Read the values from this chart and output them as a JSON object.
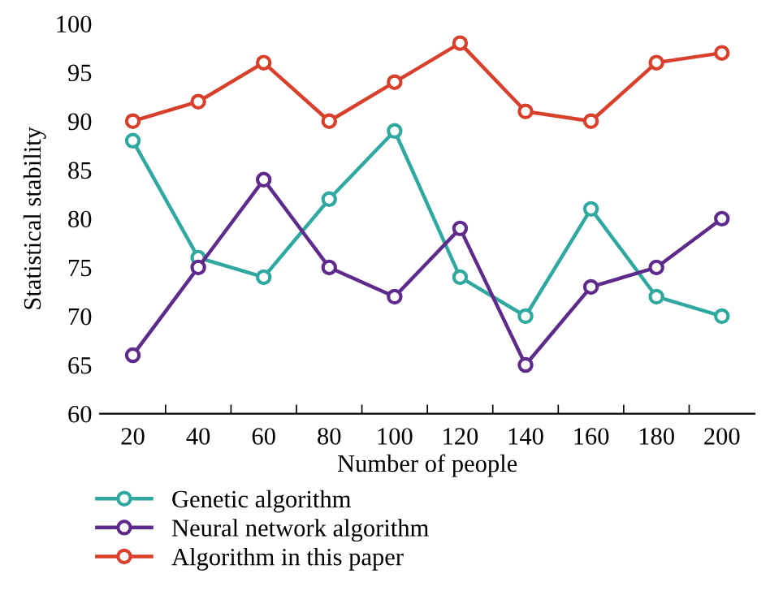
{
  "chart_data": {
    "type": "line",
    "xlabel": "Number of people",
    "ylabel": "Statistical stability",
    "x": [
      20,
      40,
      60,
      80,
      100,
      120,
      140,
      160,
      180,
      200
    ],
    "series": [
      {
        "name": "Genetic algorithm",
        "color": "#2fa8a0",
        "values": [
          88,
          76,
          74,
          82,
          89,
          74,
          70,
          81,
          72,
          70
        ]
      },
      {
        "name": "Neural network algorithm",
        "color": "#5e2a8c",
        "values": [
          66,
          75,
          84,
          75,
          72,
          79,
          65,
          73,
          75,
          80
        ]
      },
      {
        "name": "Algorithm in this paper",
        "color": "#d8402c",
        "values": [
          90,
          92,
          96,
          90,
          94,
          98,
          91,
          90,
          96,
          97
        ]
      }
    ],
    "xlim": [
      10,
      210
    ],
    "xticks": [
      20,
      {
        "value": 30,
        "label": null
      },
      40,
      {
        "value": 50,
        "label": null
      },
      60,
      {
        "value": 70,
        "label": null
      },
      80,
      {
        "value": 90,
        "label": null
      },
      100,
      {
        "value": 110,
        "label": null
      },
      120,
      {
        "value": 130,
        "label": null
      },
      140,
      {
        "value": 150,
        "label": null
      },
      160,
      {
        "value": 170,
        "label": null
      },
      180,
      {
        "value": 190,
        "label": null
      },
      200
    ],
    "ylim": [
      60,
      100
    ],
    "yticks": [
      60,
      65,
      70,
      75,
      80,
      85,
      90,
      95,
      100
    ],
    "marker": "circle",
    "line_style": "solid",
    "grid": false,
    "legend": "bottom"
  }
}
